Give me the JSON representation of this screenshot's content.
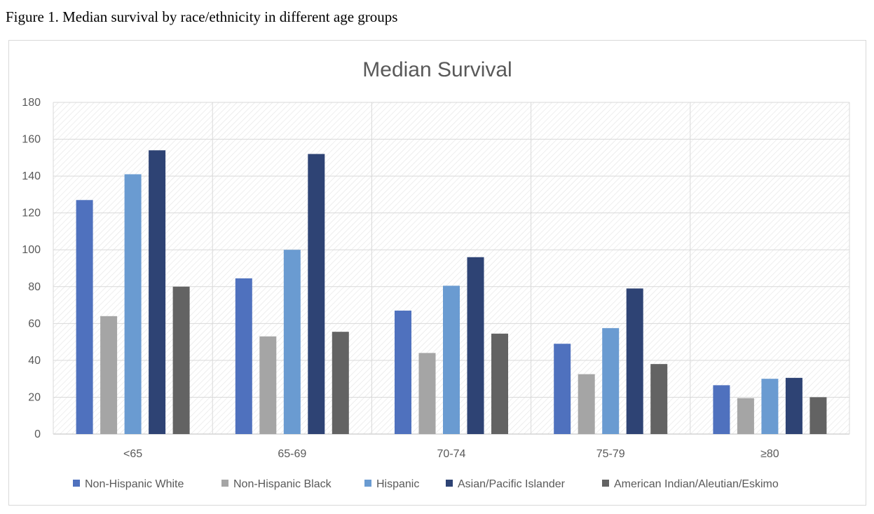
{
  "caption": "Figure 1. Median survival by race/ethnicity in different age groups",
  "chart_data": {
    "type": "bar",
    "title": "Median Survival",
    "xlabel": "",
    "ylabel": "",
    "categories": [
      "<65",
      "65-69",
      "70-74",
      "75-79",
      "≥80"
    ],
    "ylim": [
      0,
      180
    ],
    "yticks": [
      0,
      20,
      40,
      60,
      80,
      100,
      120,
      140,
      160,
      180
    ],
    "grid": true,
    "legend_position": "bottom",
    "series": [
      {
        "name": "Non-Hispanic White",
        "color": "#4f71be",
        "values": [
          127,
          84.5,
          67,
          49,
          26.5
        ]
      },
      {
        "name": "Non-Hispanic Black",
        "color": "#a5a5a5",
        "values": [
          64,
          53,
          44,
          32.5,
          19.5
        ]
      },
      {
        "name": "Hispanic",
        "color": "#6a9bd1",
        "values": [
          141,
          100,
          80.5,
          57.5,
          30
        ]
      },
      {
        "name": "Asian/Pacific Islander",
        "color": "#2e4374",
        "values": [
          154,
          152,
          96,
          79,
          30.5
        ]
      },
      {
        "name": "American Indian/Aleutian/Eskimo",
        "color": "#636363",
        "values": [
          80,
          55.5,
          54.5,
          38,
          20
        ]
      }
    ]
  }
}
